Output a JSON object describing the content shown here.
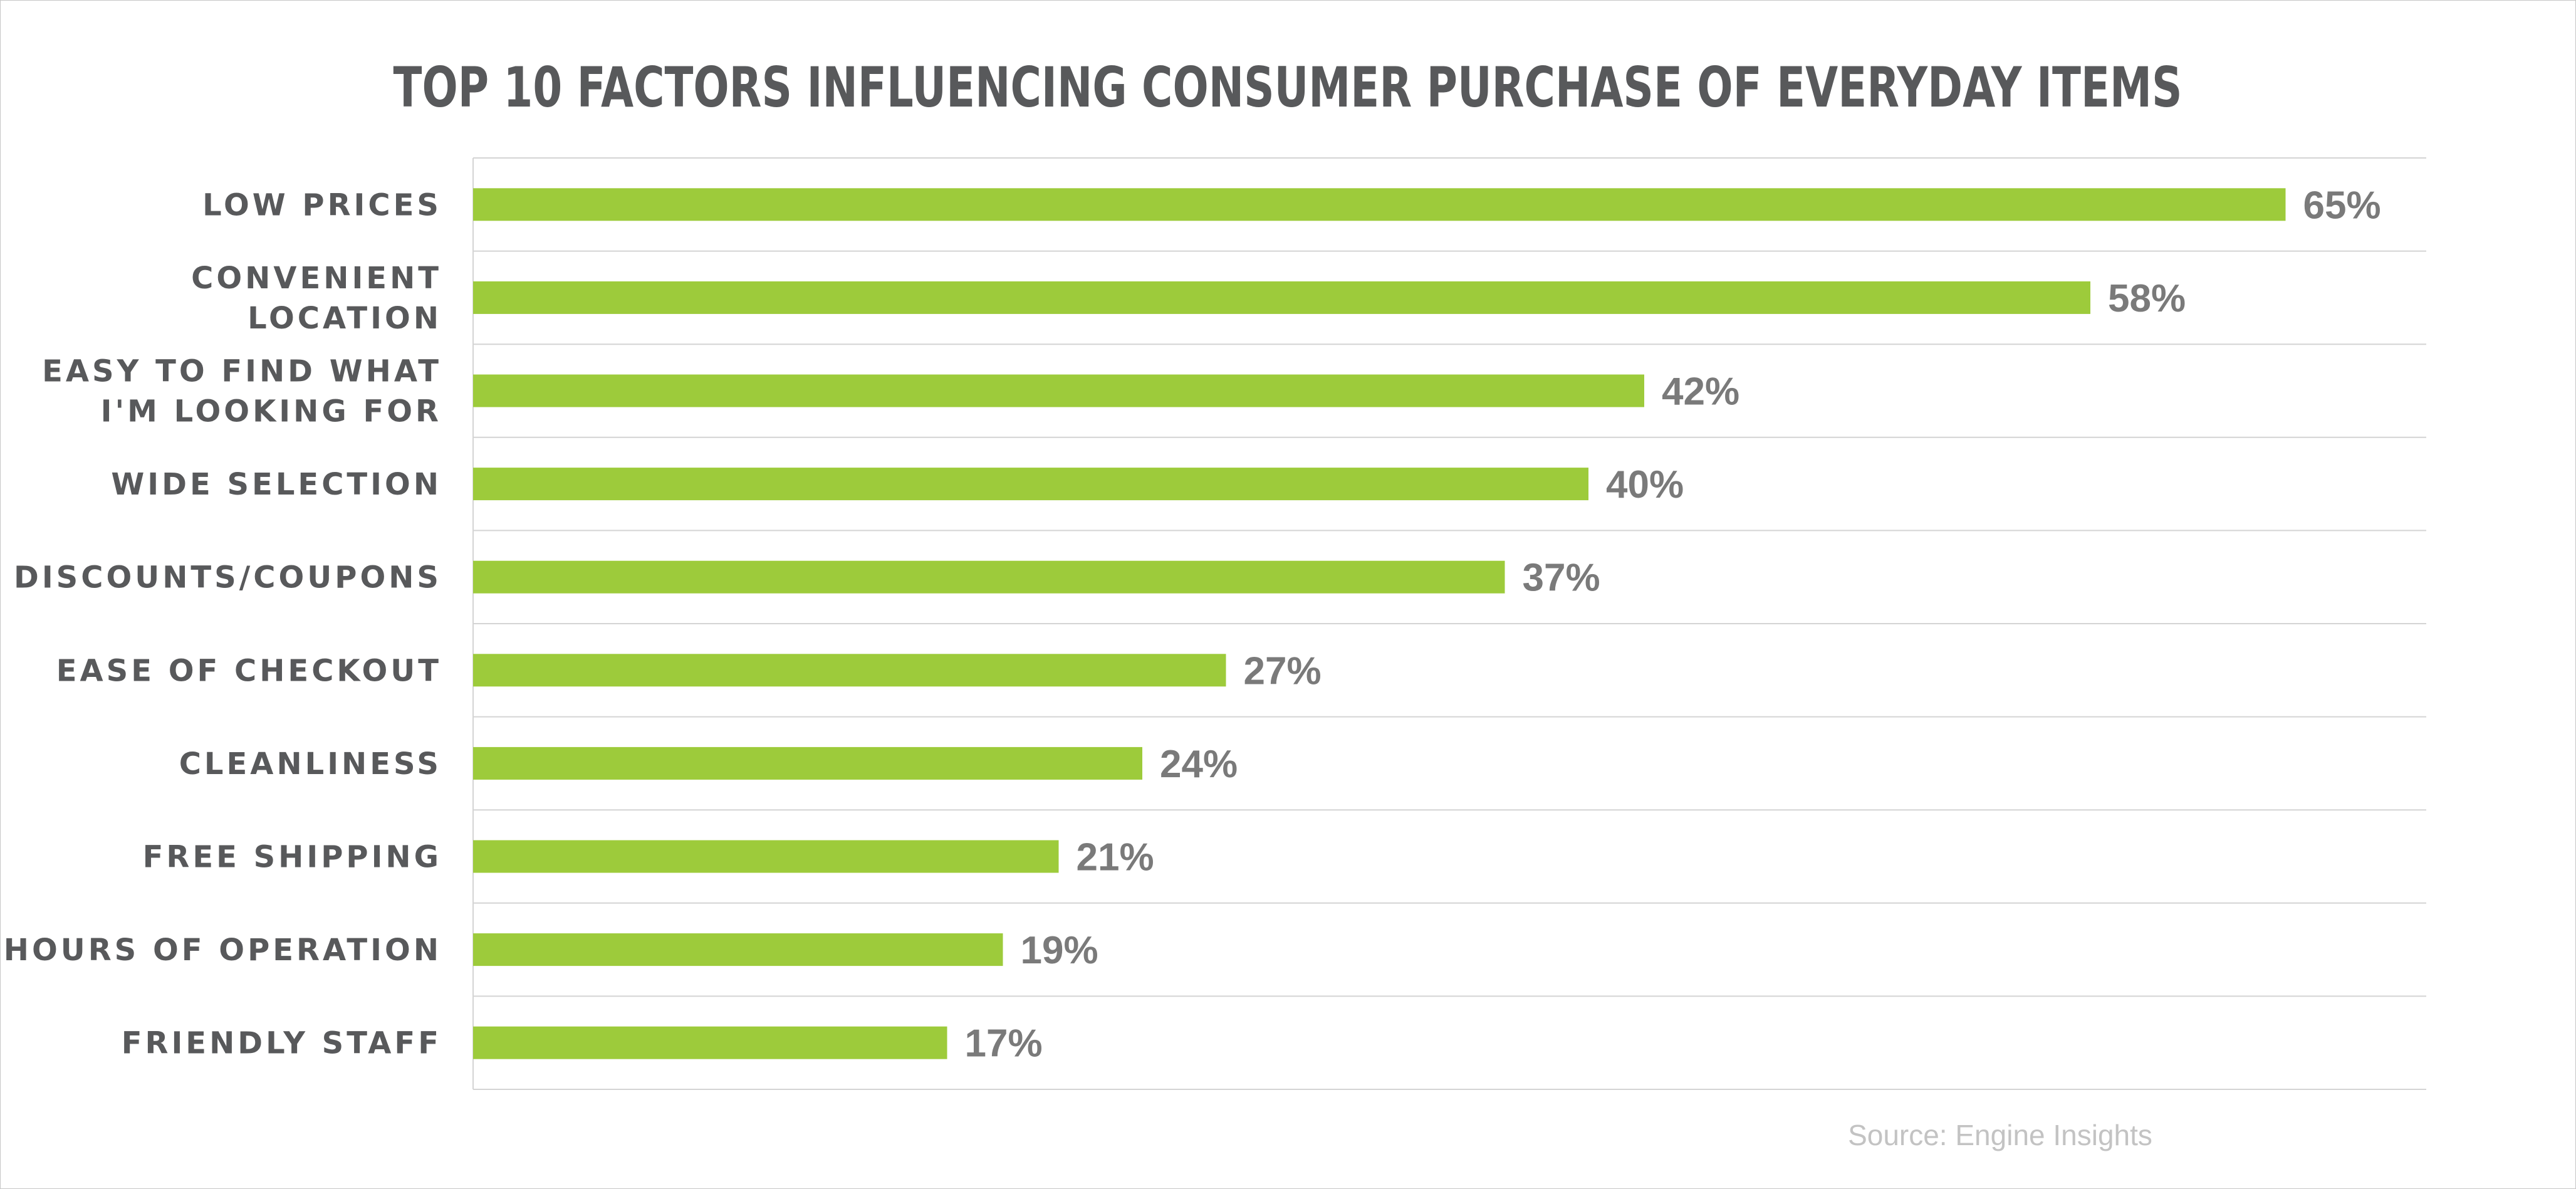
{
  "chart_data": {
    "type": "bar",
    "orientation": "horizontal",
    "title": "TOP 10 FACTORS INFLUENCING CONSUMER PURCHASE OF EVERYDAY ITEMS",
    "categories": [
      [
        "LOW PRICES"
      ],
      [
        "CONVENIENT",
        "LOCATION"
      ],
      [
        "EASY TO FIND WHAT",
        "I'M LOOKING FOR"
      ],
      [
        "WIDE SELECTION"
      ],
      [
        "DISCOUNTS/COUPONS"
      ],
      [
        "EASE OF CHECKOUT"
      ],
      [
        "CLEANLINESS"
      ],
      [
        "FREE SHIPPING"
      ],
      [
        "HOURS OF OPERATION"
      ],
      [
        "FRIENDLY STAFF"
      ]
    ],
    "values": [
      65,
      58,
      42,
      40,
      37,
      27,
      24,
      21,
      19,
      17
    ],
    "value_labels": [
      "65%",
      "58%",
      "42%",
      "40%",
      "37%",
      "27%",
      "24%",
      "21%",
      "19%",
      "17%"
    ],
    "value_unit": "%",
    "xlim": [
      0,
      70
    ],
    "xlabel": "",
    "ylabel": "",
    "grid": "horizontal separators between rows",
    "legend": "none",
    "source": "Source: Engine Insights"
  },
  "colors": {
    "bar": "#9dcb3b",
    "title": "#58595b",
    "category_text": "#58595b",
    "value_text": "#7a7a7a",
    "grid": "#d4d4d4",
    "source_text": "#c3c3c3"
  }
}
